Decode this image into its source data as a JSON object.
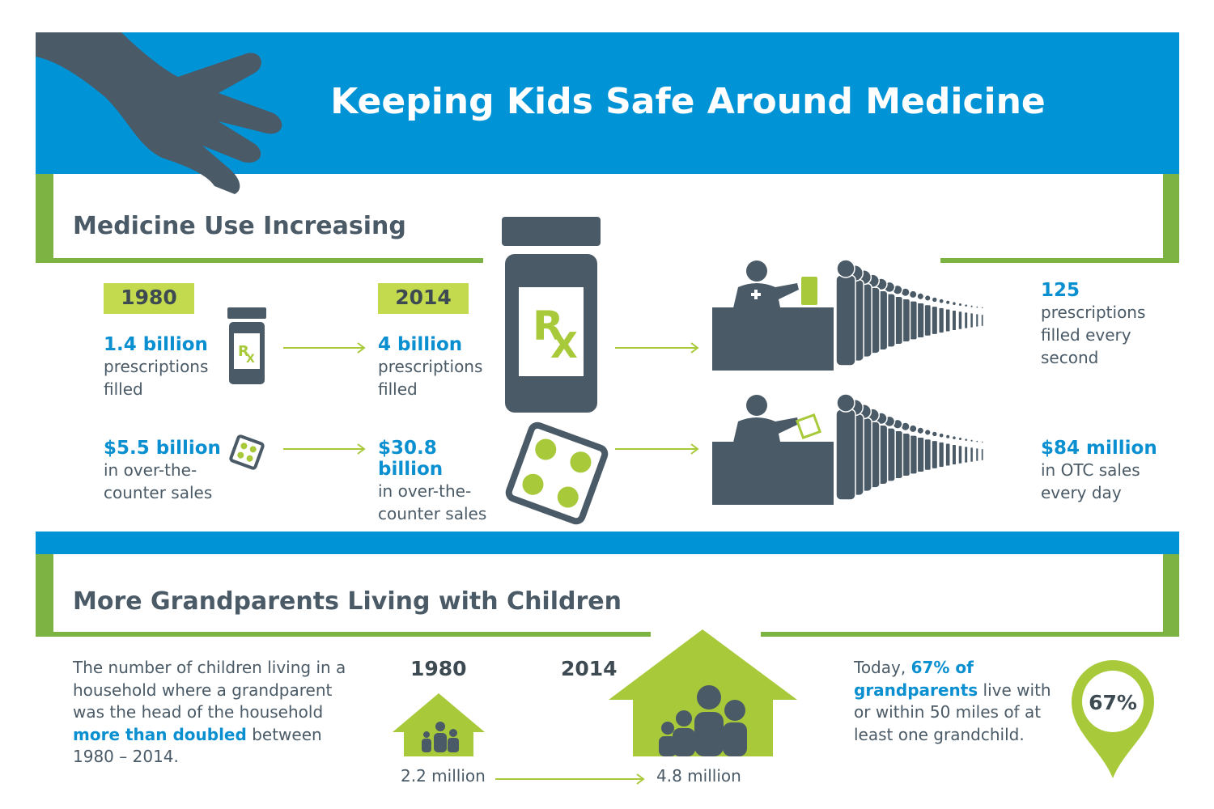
{
  "header": {
    "title": "Keeping Kids Safe Around Medicine"
  },
  "medicine": {
    "heading": "Medicine Use Increasing",
    "year_1980": "1980",
    "year_2014": "2014",
    "rx_icon": [
      "R",
      "X"
    ],
    "rx_1980": {
      "amount": "1.4 billion",
      "text": "prescriptions filled"
    },
    "otc_1980": {
      "amount": "$5.5 billion",
      "text": "in over-the-counter sales"
    },
    "rx_2014": {
      "amount": "4 billion",
      "text": "prescriptions filled"
    },
    "otc_2014": {
      "amount": "$30.8 billion",
      "text": "in over-the-counter sales"
    },
    "rx_rate": {
      "amount": "125",
      "text": "prescriptions filled every second"
    },
    "otc_rate": {
      "amount": "$84 million",
      "text": "in OTC sales every day"
    }
  },
  "grandparents": {
    "heading": "More Grandparents Living with Children",
    "intro": {
      "before": "The number of children living in a household where a grandparent was the head of the household",
      "highlight": "more than doubled",
      "after": "between 1980 – 2014."
    },
    "year_1980": "1980",
    "year_2014": "2014",
    "count_1980": "2.2 million",
    "count_2014": "4.8 million",
    "fact": {
      "before": "Today,",
      "highlight": "67% of grandparents",
      "after": "live with or within 50 miles of at least one grandchild."
    },
    "pin": "67%"
  }
}
